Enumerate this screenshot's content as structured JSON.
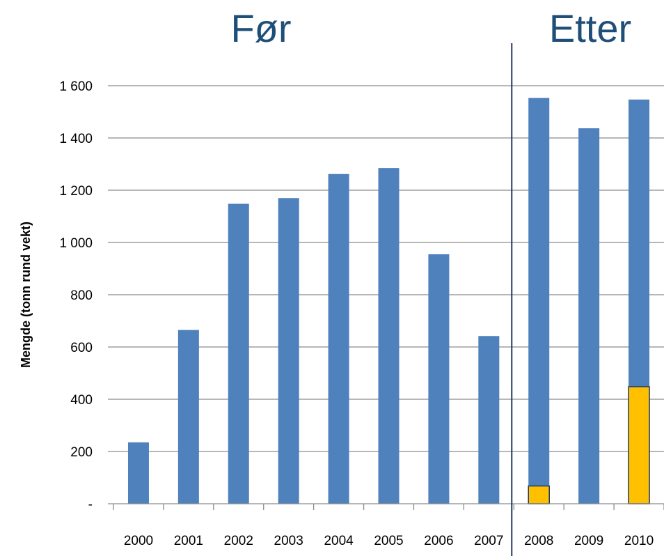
{
  "headings": {
    "before": "Før",
    "after": "Etter"
  },
  "colors": {
    "bar": "#4f81bd",
    "highlight": "#ffc000",
    "highlight_border": "#1f3864",
    "divider": "#1f3864",
    "heading": "#1f4e79",
    "grid": "#8c8c8c"
  },
  "chart_data": {
    "type": "bar",
    "title": "",
    "xlabel": "",
    "ylabel": "Mengde (tonn rund vekt)",
    "categories": [
      "2000",
      "2001",
      "2002",
      "2003",
      "2004",
      "2005",
      "2006",
      "2007",
      "2008",
      "2009",
      "2010"
    ],
    "series": [
      {
        "values": [
          235,
          665,
          1148,
          1170,
          1262,
          1285,
          955,
          642,
          1553,
          1437,
          1547
        ]
      },
      {
        "values": [
          null,
          null,
          null,
          null,
          null,
          null,
          null,
          null,
          68,
          null,
          448
        ]
      }
    ],
    "ylim": [
      0,
      1600
    ],
    "yticks": [
      0,
      200,
      400,
      600,
      800,
      1000,
      1200,
      1400,
      1600
    ],
    "ytick_labels": [
      "-",
      "200",
      "400",
      "600",
      "800",
      "1 000",
      "1 200",
      "1 400",
      "1 600"
    ],
    "grid": true,
    "divider_after_category": "2007"
  }
}
